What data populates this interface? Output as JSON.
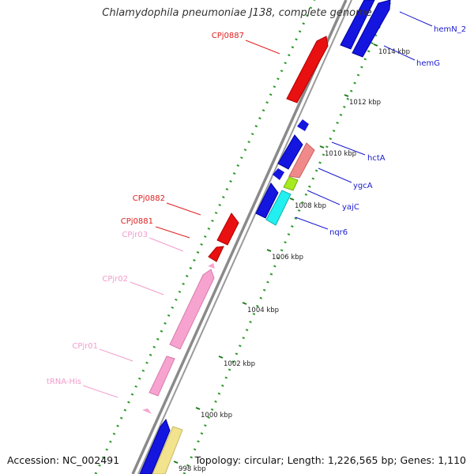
{
  "title": "Chlamydophila pneumoniae J138, complete genome",
  "footer": {
    "accession": "Accession: NC_002491",
    "summary": "Topology: circular; Length: 1,226,565 bp; Genes: 1,110"
  },
  "colors": {
    "blue": "#1515e0",
    "red": "#e81010",
    "pink": "#f7a3cf",
    "salmon": "#f08a8a",
    "yellowgreen": "#a8ea20",
    "cyan": "#22f0f0",
    "khaki": "#f2e38e",
    "ruler_dot": "#2a9a2a",
    "backbone": "#888888"
  },
  "ruler_ticks": [
    "1014 kbp",
    "1012 kbp",
    "1010 kbp",
    "1008 kbp",
    "1006 kbp",
    "1004 kbp",
    "1002 kbp",
    "1000 kbp",
    "998 kbp"
  ],
  "left_labels": [
    {
      "text": "CPj0887",
      "color": "#e02020"
    },
    {
      "text": "CPj0882",
      "color": "#e02020"
    },
    {
      "text": "CPj0881",
      "color": "#e02020"
    },
    {
      "text": "CPjr03",
      "color": "#f29ccb"
    },
    {
      "text": "CPjr02",
      "color": "#f29ccb"
    },
    {
      "text": "CPjr01",
      "color": "#f29ccb"
    },
    {
      "text": "tRNA-His",
      "color": "#f29ccb"
    }
  ],
  "right_labels": [
    {
      "text": "hemN_2",
      "color": "#1a1acc"
    },
    {
      "text": "hemG",
      "color": "#1a1acc"
    },
    {
      "text": "hctA",
      "color": "#1a1acc"
    },
    {
      "text": "ygcA",
      "color": "#1a1acc"
    },
    {
      "text": "yajC",
      "color": "#1a1acc"
    },
    {
      "text": "nqr6",
      "color": "#1a1acc"
    }
  ]
}
